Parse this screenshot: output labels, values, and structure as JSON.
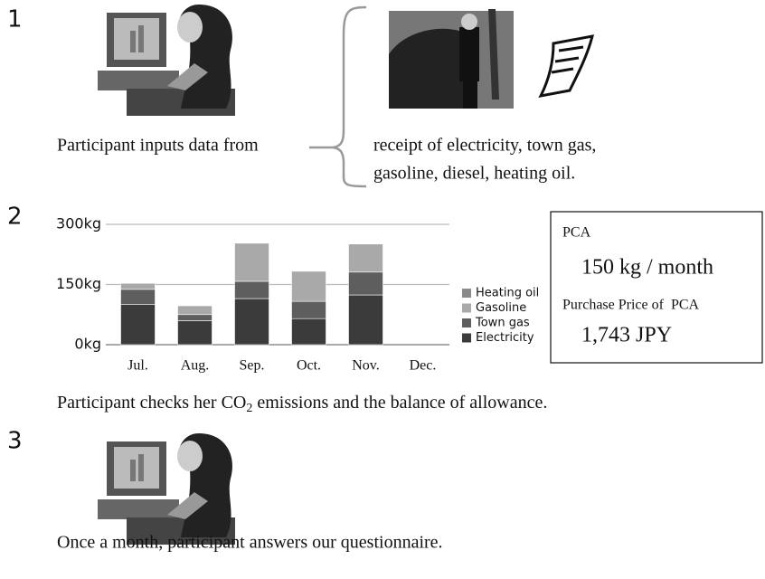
{
  "steps": [
    "1",
    "2",
    "3"
  ],
  "step1": {
    "caption": "Participant inputs data from",
    "sources": [
      "receipt of electricity, town gas,",
      "gasoline, diesel, heating oil."
    ]
  },
  "step2": {
    "caption": [
      "Participant checks her CO",
      "2",
      " emissions and the balance of allowance."
    ],
    "panel": {
      "label": "PCA",
      "value": "150 kg / month",
      "price_label": "Purchase Price of  PCA",
      "price": "1,743 JPY"
    }
  },
  "step3": {
    "caption": "Once a month, participant answers our questionnaire."
  },
  "chart_data": {
    "type": "bar",
    "stacked": true,
    "categories": [
      "Jul.",
      "Aug.",
      "Sep.",
      "Oct.",
      "Nov.",
      "Dec."
    ],
    "series": [
      {
        "name": "Electricity",
        "color": "#3b3b3b",
        "values": [
          100,
          60,
          115,
          65,
          124,
          null
        ]
      },
      {
        "name": "Town gas",
        "color": "#5e5e5e",
        "values": [
          38,
          15,
          43,
          43,
          57,
          null
        ]
      },
      {
        "name": "Gasoline",
        "color": "#a9a9a9",
        "values": [
          15,
          22,
          95,
          75,
          70,
          null
        ]
      },
      {
        "name": "Heating oil",
        "color": "#8a8a8a",
        "values": [
          0,
          0,
          0,
          0,
          0,
          null
        ]
      }
    ],
    "ylim": [
      0,
      300
    ],
    "yticks": [
      {
        "value": 0,
        "label": "0kg"
      },
      {
        "value": 150,
        "label": "150kg"
      },
      {
        "value": 300,
        "label": "300kg"
      }
    ],
    "grid": true,
    "legend": "right"
  }
}
